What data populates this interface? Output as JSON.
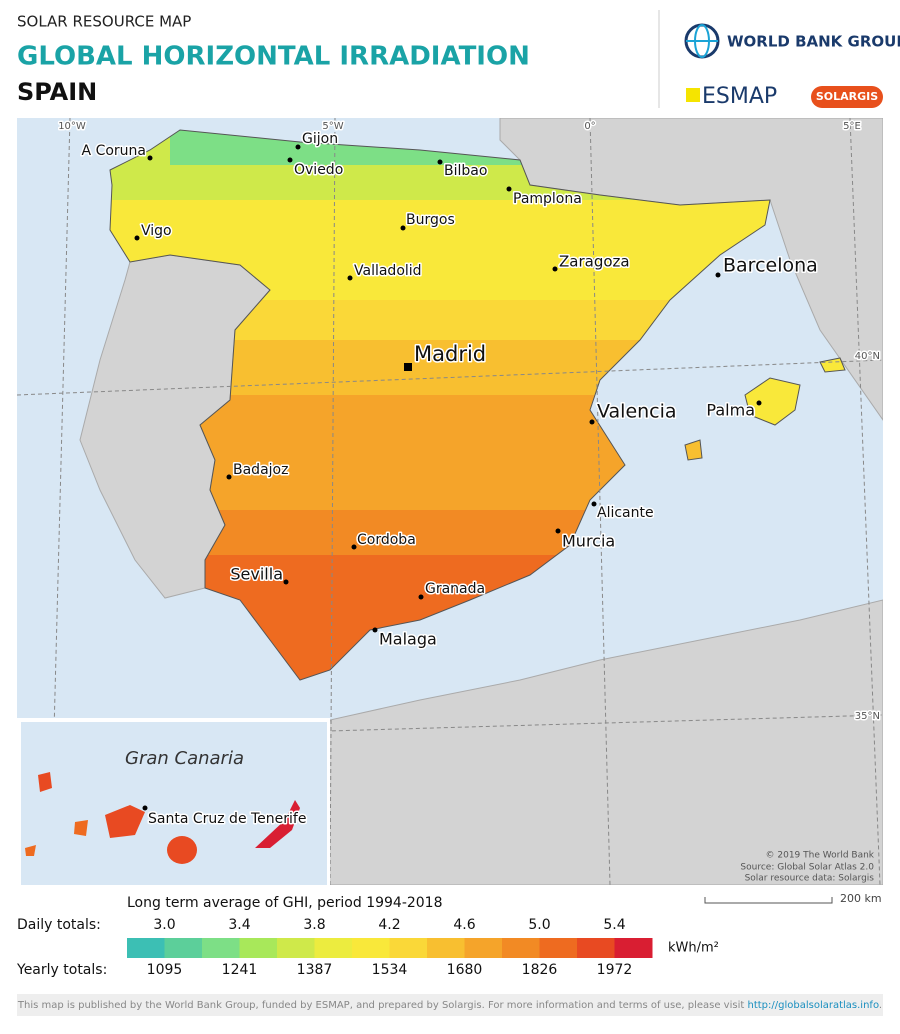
{
  "header": {
    "kicker": "SOLAR RESOURCE MAP",
    "title": "GLOBAL HORIZONTAL IRRADIATION",
    "country": "SPAIN"
  },
  "logos": {
    "world_bank": "WORLD BANK GROUP",
    "esmap": "ESMAP",
    "solargis": "SOLARGIS"
  },
  "map": {
    "graticule": [
      "10°W",
      "5°W",
      "0°",
      "5°E",
      "40°N",
      "35°N"
    ],
    "cities": [
      "A Coruna",
      "Gijon",
      "Oviedo",
      "Bilbao",
      "Pamplona",
      "Burgos",
      "Vigo",
      "Valladolid",
      "Zaragoza",
      "Barcelona",
      "Madrid",
      "Valencia",
      "Palma",
      "Badajoz",
      "Alicante",
      "Murcia",
      "Cordoba",
      "Sevilla",
      "Granada",
      "Malaga"
    ],
    "inset": {
      "title": "Gran Canaria",
      "city": "Santa Cruz de Tenerife"
    },
    "credits": [
      "© 2019 The World Bank",
      "Source: Global Solar Atlas 2.0",
      "Solar resource data: Solargis"
    ],
    "scale": "200 km"
  },
  "legend": {
    "title": "Long term average of GHI, period 1994-2018",
    "daily_label": "Daily totals:",
    "yearly_label": "Yearly totals:",
    "unit": "kWh/m²",
    "range": [
      2.8,
      5.6
    ],
    "colors": [
      "#3cbfb4",
      "#5ccf9a",
      "#7ddf86",
      "#a8e85a",
      "#cfe94a",
      "#ecec3f",
      "#f9e83a",
      "#fad838",
      "#f8bf30",
      "#f5a42a",
      "#f28a24",
      "#ee6b20",
      "#e84a22",
      "#d91e32"
    ],
    "daily_ticks": [
      {
        "value": 3,
        "label": "3.0"
      },
      3.4,
      3.8,
      4.2,
      4.6,
      {
        "value": 5,
        "label": "5.0"
      },
      5.4
    ],
    "yearly_ticks": [
      1095,
      1241,
      1387,
      1534,
      1680,
      1826,
      1972
    ]
  },
  "footer": {
    "text": "This map is published by the World Bank Group, funded by ESMAP, and prepared by Solargis. For more information and terms of use, please visit",
    "link": "http://globalsolaratlas.info",
    "end": "."
  }
}
